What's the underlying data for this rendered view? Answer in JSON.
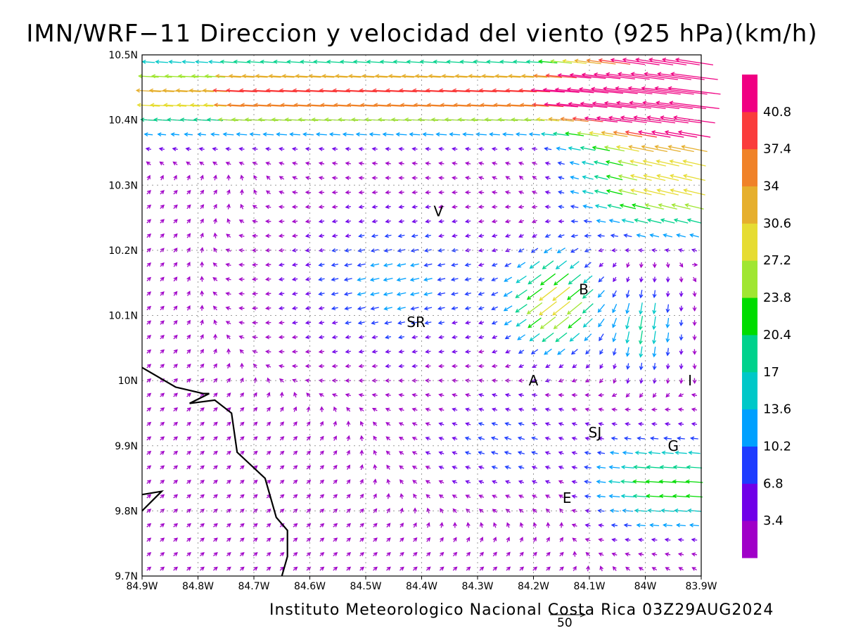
{
  "title": "IMN/WRF−11 Direccion y velocidad del viento (925 hPa)(km/h)",
  "footer": "Instituto Meteorologico Nacional Costa Rica 03Z29AUG2024",
  "scale_vector_label": "50",
  "map": {
    "lon_range": [
      -84.9,
      -83.9
    ],
    "lat_range": [
      9.7,
      10.5
    ],
    "lon_ticks": [
      "84.9W",
      "84.8W",
      "84.7W",
      "84.6W",
      "84.5W",
      "84.4W",
      "84.3W",
      "84.2W",
      "84.1W",
      "84W",
      "83.9W"
    ],
    "lat_ticks": [
      "9.7N",
      "9.8N",
      "9.9N",
      "10N",
      "10.1N",
      "10.2N",
      "10.3N",
      "10.4N",
      "10.5N"
    ],
    "grid": true,
    "places": [
      {
        "label": "V",
        "lon": -84.37,
        "lat": 10.26
      },
      {
        "label": "SR",
        "lon": -84.41,
        "lat": 10.09
      },
      {
        "label": "B",
        "lon": -84.11,
        "lat": 10.14
      },
      {
        "label": "A",
        "lon": -84.2,
        "lat": 10.0
      },
      {
        "label": "I",
        "lon": -83.92,
        "lat": 10.0
      },
      {
        "label": "SJ",
        "lon": -84.09,
        "lat": 9.92
      },
      {
        "label": "G",
        "lon": -83.95,
        "lat": 9.9
      },
      {
        "label": "E",
        "lon": -84.14,
        "lat": 9.82
      }
    ],
    "coastline": [
      [
        [
          -84.9,
          10.02
        ],
        [
          -84.84,
          9.99
        ],
        [
          -84.79,
          9.98
        ],
        [
          -84.78,
          9.98
        ],
        [
          -84.815,
          9.965
        ],
        [
          -84.77,
          9.97
        ],
        [
          -84.74,
          9.95
        ],
        [
          -84.73,
          9.89
        ],
        [
          -84.68,
          9.85
        ],
        [
          -84.66,
          9.79
        ],
        [
          -84.64,
          9.77
        ],
        [
          -84.64,
          9.73
        ],
        [
          -84.65,
          9.7
        ]
      ],
      [
        [
          -84.9,
          9.825
        ],
        [
          -84.865,
          9.83
        ],
        [
          -84.9,
          9.8
        ]
      ]
    ]
  },
  "colorbar": {
    "labels": [
      "3.4",
      "6.8",
      "10.2",
      "13.6",
      "17",
      "20.4",
      "23.8",
      "27.2",
      "30.6",
      "34",
      "37.4",
      "40.8"
    ],
    "colors": [
      "#a000c8",
      "#7000e8",
      "#1e3cff",
      "#00a0ff",
      "#00c8c8",
      "#00d28c",
      "#00dc00",
      "#a0e632",
      "#e6dc32",
      "#e6af2d",
      "#f08228",
      "#fa3c3c",
      "#f00082"
    ]
  }
}
